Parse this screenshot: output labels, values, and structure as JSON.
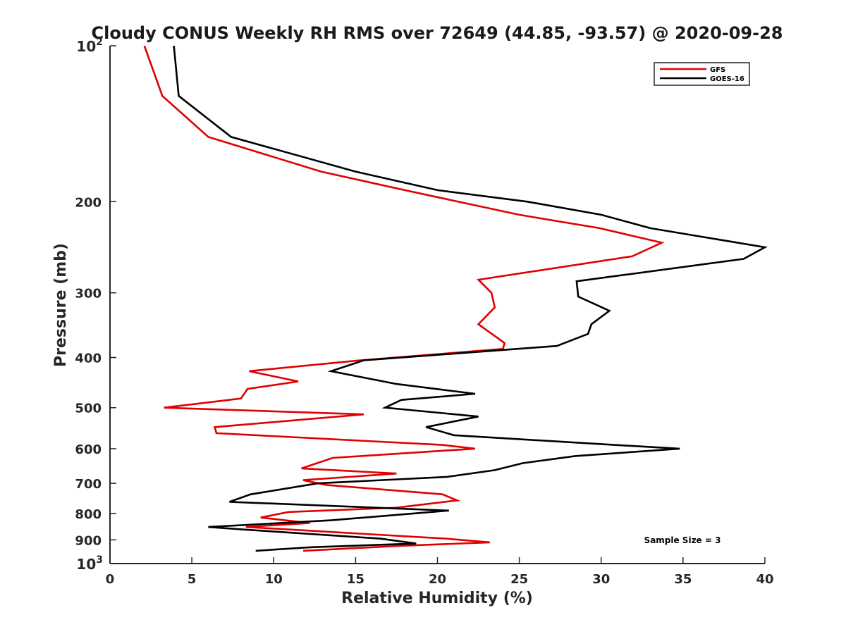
{
  "chart_data": {
    "type": "line",
    "title": "Cloudy CONUS Weekly RH RMS over 72649 (44.85, -93.57) @ 2020-09-28",
    "xlabel": "Relative Humidity (%)",
    "ylabel": "Pressure (mb)",
    "xlim": [
      0,
      40
    ],
    "ylim": [
      100,
      1000
    ],
    "yscale": "log",
    "y_reversed": true,
    "x_ticks": [
      "0",
      "5",
      "10",
      "15",
      "20",
      "25",
      "30",
      "35",
      "40"
    ],
    "y_ticks": [
      {
        "value": 100,
        "label": "10",
        "sup": "2"
      },
      {
        "value": 200,
        "label": "200"
      },
      {
        "value": 300,
        "label": "300"
      },
      {
        "value": 400,
        "label": "400"
      },
      {
        "value": 500,
        "label": "500"
      },
      {
        "value": 600,
        "label": "600"
      },
      {
        "value": 700,
        "label": "700"
      },
      {
        "value": 800,
        "label": "800"
      },
      {
        "value": 900,
        "label": "900"
      },
      {
        "value": 1000,
        "label": "10",
        "sup": "3"
      }
    ],
    "grid": false,
    "legend_position": "top-right",
    "annotation": "Sample Size = 3",
    "series": [
      {
        "name": "GFS",
        "color": "#e00000",
        "points": [
          [
            2.1,
            100
          ],
          [
            3.2,
            125
          ],
          [
            6.0,
            150
          ],
          [
            12.9,
            175
          ],
          [
            18.0,
            190
          ],
          [
            25.0,
            212
          ],
          [
            29.9,
            225
          ],
          [
            33.7,
            240
          ],
          [
            31.9,
            255
          ],
          [
            22.5,
            283
          ],
          [
            23.3,
            300
          ],
          [
            23.5,
            320
          ],
          [
            22.5,
            345
          ],
          [
            24.1,
            375
          ],
          [
            24.0,
            385
          ],
          [
            15.3,
            405
          ],
          [
            8.5,
            425
          ],
          [
            11.5,
            445
          ],
          [
            8.4,
            460
          ],
          [
            8.0,
            480
          ],
          [
            3.3,
            500
          ],
          [
            15.5,
            515
          ],
          [
            6.4,
            545
          ],
          [
            6.5,
            560
          ],
          [
            20.3,
            590
          ],
          [
            22.3,
            600
          ],
          [
            13.6,
            625
          ],
          [
            11.7,
            655
          ],
          [
            17.5,
            670
          ],
          [
            11.8,
            690
          ],
          [
            13.2,
            705
          ],
          [
            20.3,
            735
          ],
          [
            21.2,
            755
          ],
          [
            17.5,
            780
          ],
          [
            10.9,
            795
          ],
          [
            9.2,
            815
          ],
          [
            12.2,
            835
          ],
          [
            8.3,
            850
          ],
          [
            20.5,
            895
          ],
          [
            23.2,
            910
          ],
          [
            17.5,
            925
          ],
          [
            11.8,
            945
          ]
        ]
      },
      {
        "name": "GOES-16",
        "color": "#000000",
        "points": [
          [
            3.9,
            100
          ],
          [
            4.2,
            125
          ],
          [
            7.4,
            150
          ],
          [
            15.0,
            175
          ],
          [
            20.0,
            190
          ],
          [
            25.5,
            200
          ],
          [
            30.0,
            212
          ],
          [
            33.0,
            225
          ],
          [
            40.0,
            245
          ],
          [
            38.7,
            258
          ],
          [
            28.5,
            285
          ],
          [
            28.6,
            305
          ],
          [
            30.5,
            325
          ],
          [
            29.4,
            345
          ],
          [
            29.2,
            360
          ],
          [
            27.3,
            380
          ],
          [
            15.5,
            405
          ],
          [
            13.5,
            425
          ],
          [
            17.5,
            450
          ],
          [
            22.3,
            470
          ],
          [
            17.8,
            483
          ],
          [
            16.8,
            500
          ],
          [
            22.5,
            520
          ],
          [
            19.3,
            545
          ],
          [
            21.0,
            565
          ],
          [
            30.8,
            590
          ],
          [
            34.8,
            600
          ],
          [
            28.4,
            620
          ],
          [
            25.2,
            640
          ],
          [
            23.5,
            660
          ],
          [
            20.6,
            680
          ],
          [
            12.7,
            700
          ],
          [
            8.6,
            735
          ],
          [
            7.3,
            760
          ],
          [
            20.7,
            790
          ],
          [
            13.5,
            825
          ],
          [
            6.0,
            850
          ],
          [
            8.3,
            860
          ],
          [
            16.5,
            895
          ],
          [
            18.7,
            915
          ],
          [
            12.3,
            930
          ],
          [
            8.9,
            945
          ]
        ]
      }
    ]
  }
}
